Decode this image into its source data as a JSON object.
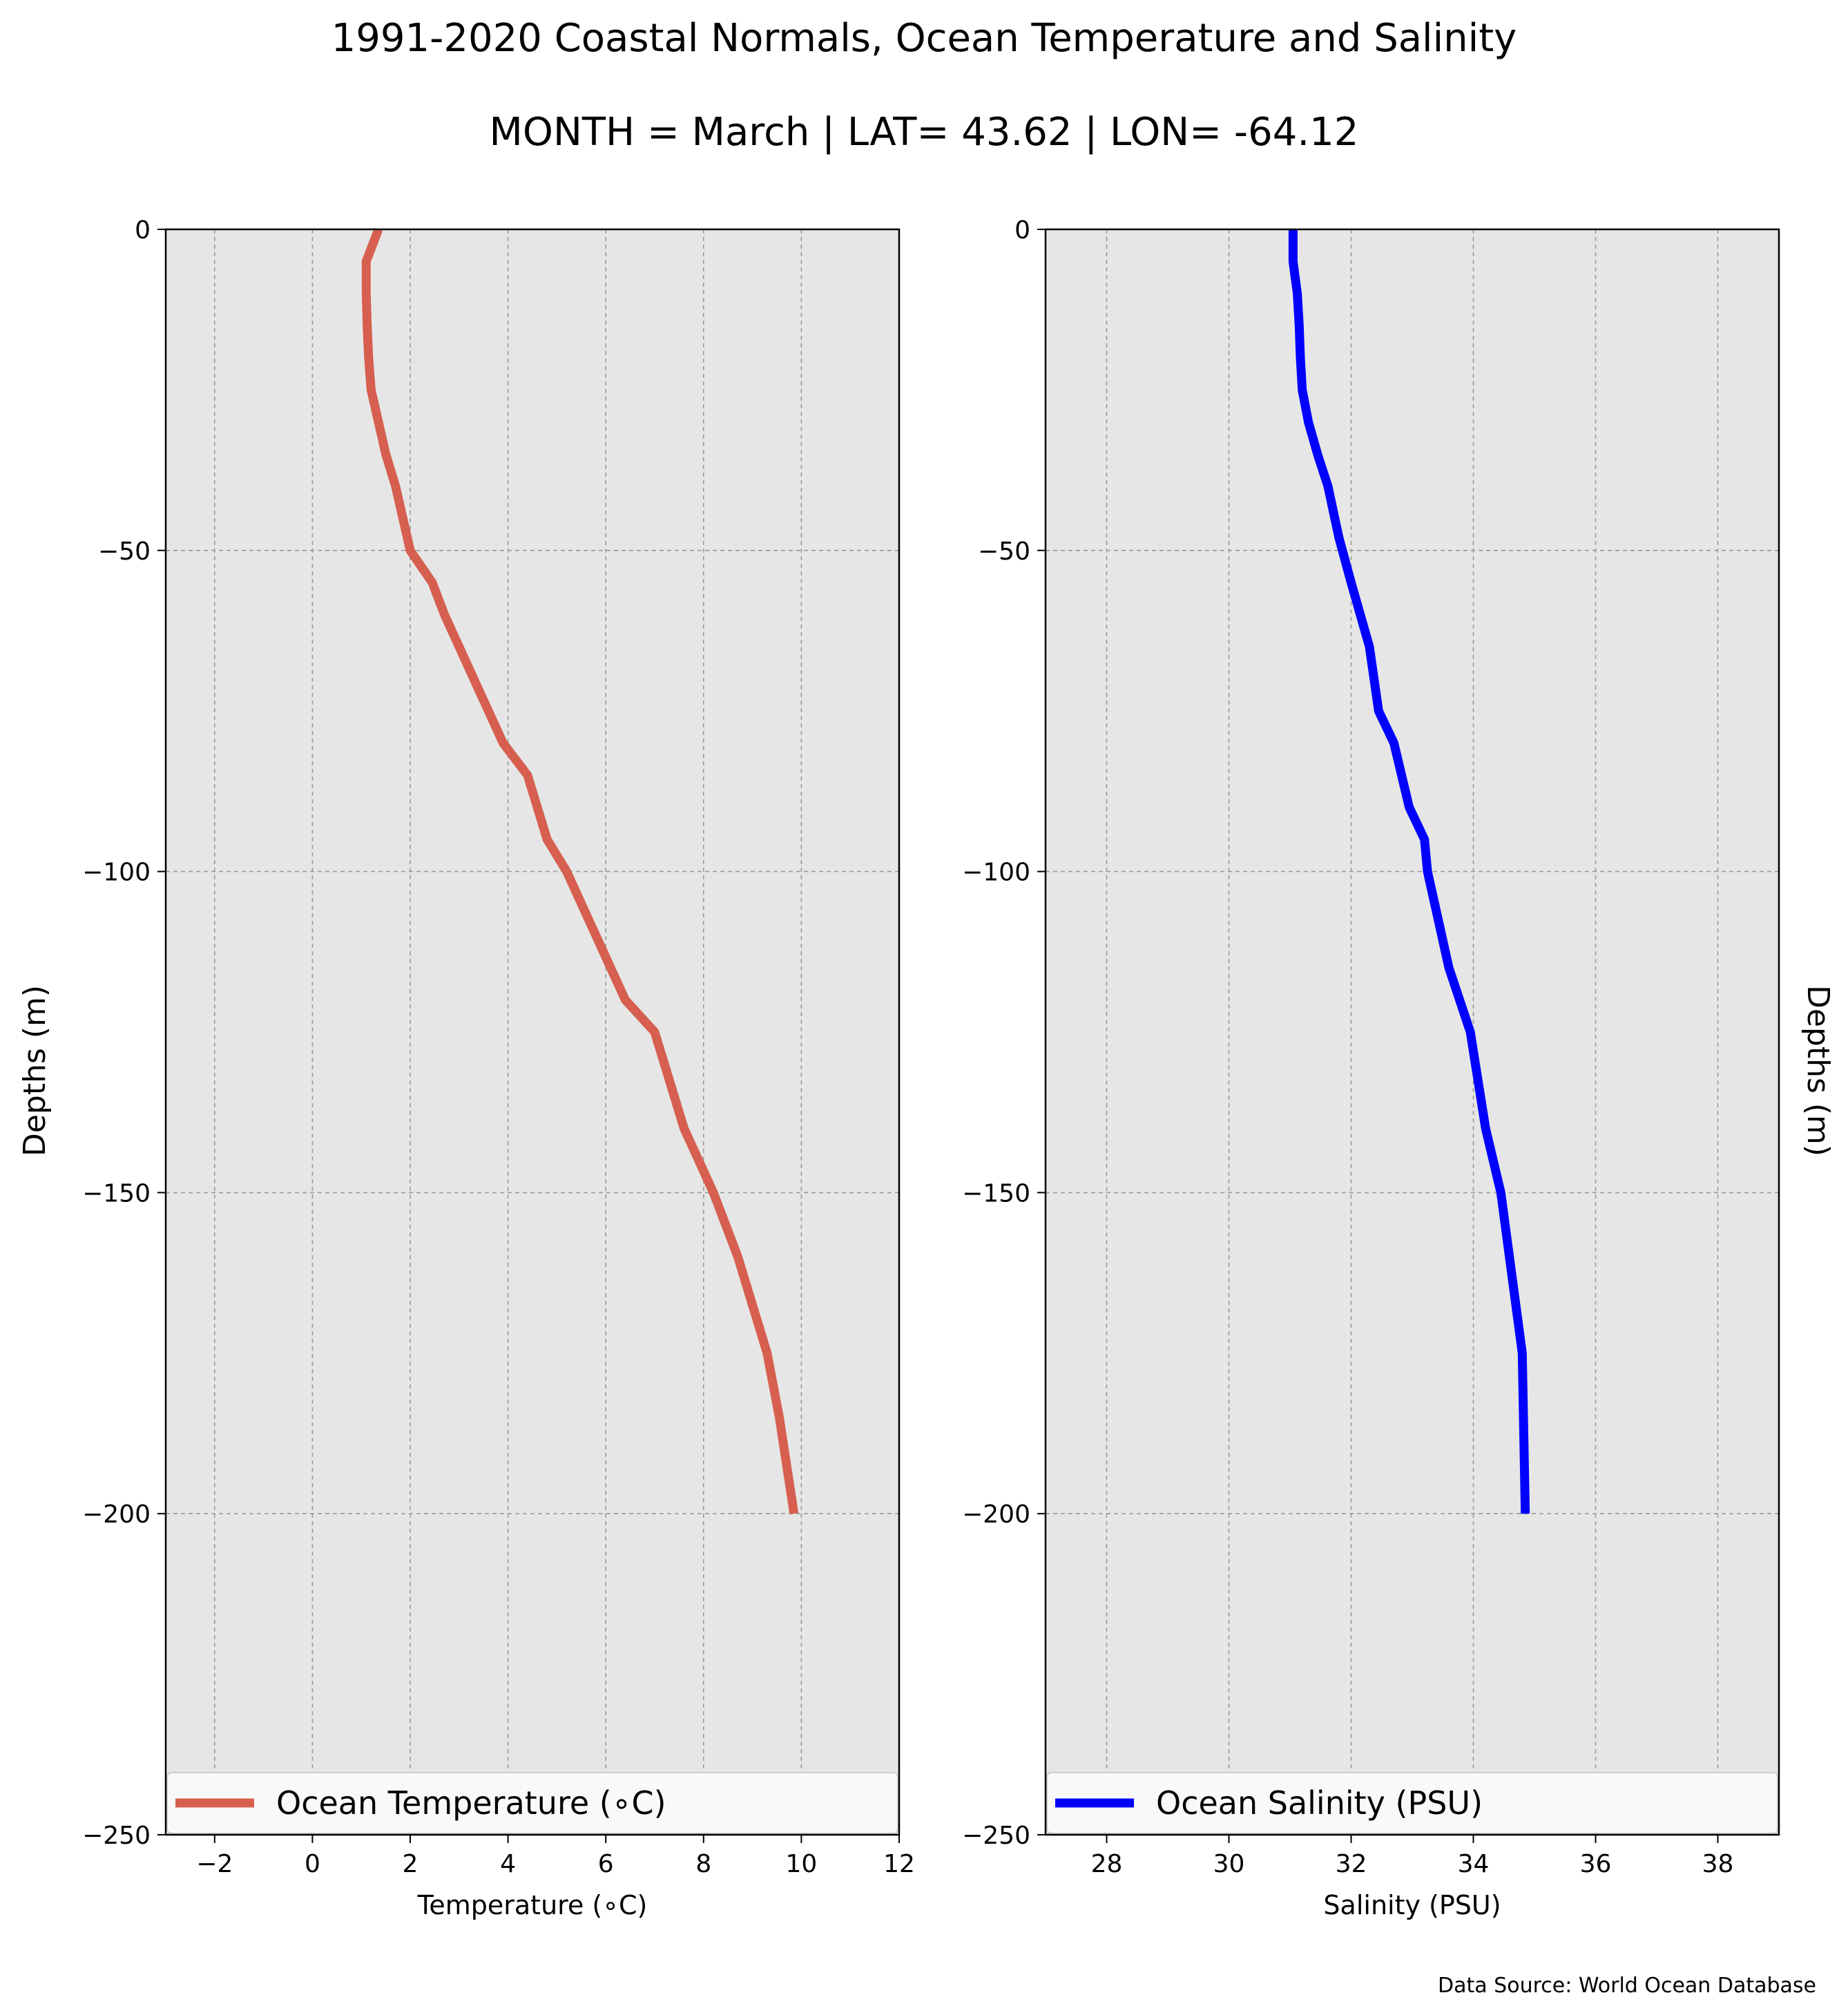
{
  "title": "1991-2020 Coastal Normals, Ocean Temperature and Salinity",
  "subtitle": "MONTH = March | LAT= 43.62 | LON= -64.12",
  "source_note": "Data Source: World Ocean Database",
  "colors": {
    "background": "#ffffff",
    "plot_background": "#e6e6e6",
    "grid": "#9a9a9a",
    "temperature_line": "#d65f4f",
    "salinity_line": "#0000ff"
  },
  "chart_data": [
    {
      "type": "line",
      "xlabel": "Temperature (∘C)",
      "ylabel": "Depths (m)",
      "xlim": [
        -3,
        12
      ],
      "ylim": [
        -250,
        0
      ],
      "xticks": [
        -2,
        0,
        2,
        4,
        6,
        8,
        10,
        12
      ],
      "xtick_labels": [
        "−2",
        "0",
        "2",
        "4",
        "6",
        "8",
        "10",
        "12"
      ],
      "yticks": [
        0,
        -50,
        -100,
        -150,
        -200,
        -250
      ],
      "ytick_labels": [
        "0",
        "−50",
        "−100",
        "−150",
        "−200",
        "−250"
      ],
      "grid": true,
      "legend": "bottom",
      "series": [
        {
          "name": "Ocean Temperature (∘C)",
          "color": "#d65f4f",
          "x": [
            1.35,
            1.1,
            1.1,
            1.12,
            1.15,
            1.2,
            1.35,
            1.5,
            1.7,
            2.0,
            2.45,
            2.7,
            3.3,
            3.9,
            4.4,
            4.8,
            5.2,
            5.8,
            6.4,
            7.0,
            7.6,
            8.2,
            8.7,
            9.3,
            9.55,
            9.85
          ],
          "y": [
            0,
            -5,
            -10,
            -15,
            -20,
            -25,
            -30,
            -35,
            -40,
            -50,
            -55,
            -60,
            -70,
            -80,
            -85,
            -95,
            -100,
            -110,
            -120,
            -125,
            -140,
            -150,
            -160,
            -175,
            -185,
            -200
          ]
        }
      ]
    },
    {
      "type": "line",
      "xlabel": "Salinity (PSU)",
      "ylabel": "Depths (m)",
      "xlim": [
        27,
        39
      ],
      "ylim": [
        -250,
        0
      ],
      "xticks": [
        28,
        30,
        32,
        34,
        36,
        38
      ],
      "xtick_labels": [
        "28",
        "30",
        "32",
        "34",
        "36",
        "38"
      ],
      "yticks": [
        0,
        -50,
        -100,
        -150,
        -200,
        -250
      ],
      "ytick_labels": [
        "0",
        "−50",
        "−100",
        "−150",
        "−200",
        "−250"
      ],
      "grid": true,
      "legend": "bottom",
      "series": [
        {
          "name": "Ocean Salinity (PSU)",
          "color": "#0000ff",
          "x": [
            31.05,
            31.05,
            31.12,
            31.15,
            31.17,
            31.2,
            31.3,
            31.45,
            31.62,
            31.8,
            32.0,
            32.3,
            32.45,
            32.7,
            32.95,
            33.2,
            33.25,
            33.6,
            33.95,
            34.2,
            34.45,
            34.8,
            34.85
          ],
          "y": [
            0,
            -5,
            -10,
            -15,
            -20,
            -25,
            -30,
            -35,
            -40,
            -48,
            -55,
            -65,
            -75,
            -80,
            -90,
            -95,
            -100,
            -115,
            -125,
            -140,
            -150,
            -175,
            -200
          ]
        }
      ]
    }
  ]
}
